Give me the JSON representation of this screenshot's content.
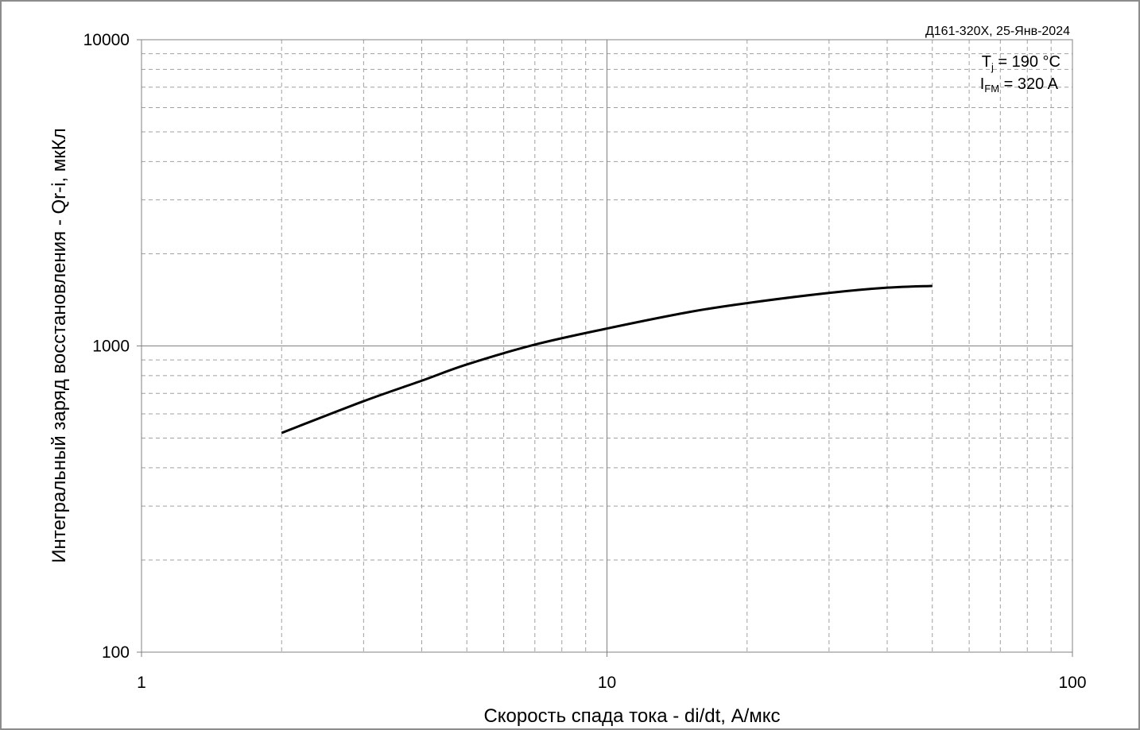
{
  "chart_data": {
    "type": "line",
    "title": "",
    "xlabel": "Скорость спада тока - di/dt, А/мкс",
    "ylabel": "Интегральный заряд восстановления - Qr-i, мкКл",
    "x_scale": "log",
    "y_scale": "log",
    "xlim": [
      1,
      100
    ],
    "ylim": [
      100,
      10000
    ],
    "x_ticks": [
      "1",
      "10",
      "100"
    ],
    "y_ticks": [
      "100",
      "1000",
      "10000"
    ],
    "grid": true,
    "annotation": "Д161-320Х, 25-Янв-2024",
    "conditions": {
      "tj_main": "T",
      "tj_sub": "j",
      "tj_value": " = 190 °C",
      "ifm_main": "I",
      "ifm_sub": "FM",
      "ifm_value": " = 320 A"
    },
    "series": [
      {
        "x": [
          2,
          3,
          4,
          5,
          7,
          10,
          15,
          20,
          30,
          40,
          50
        ],
        "y": [
          520,
          660,
          770,
          870,
          1010,
          1140,
          1290,
          1380,
          1490,
          1550,
          1570
        ]
      }
    ],
    "colors": {
      "line": "#000000",
      "grid": "#a0a0a0",
      "frame": "#8c8c8c"
    }
  }
}
